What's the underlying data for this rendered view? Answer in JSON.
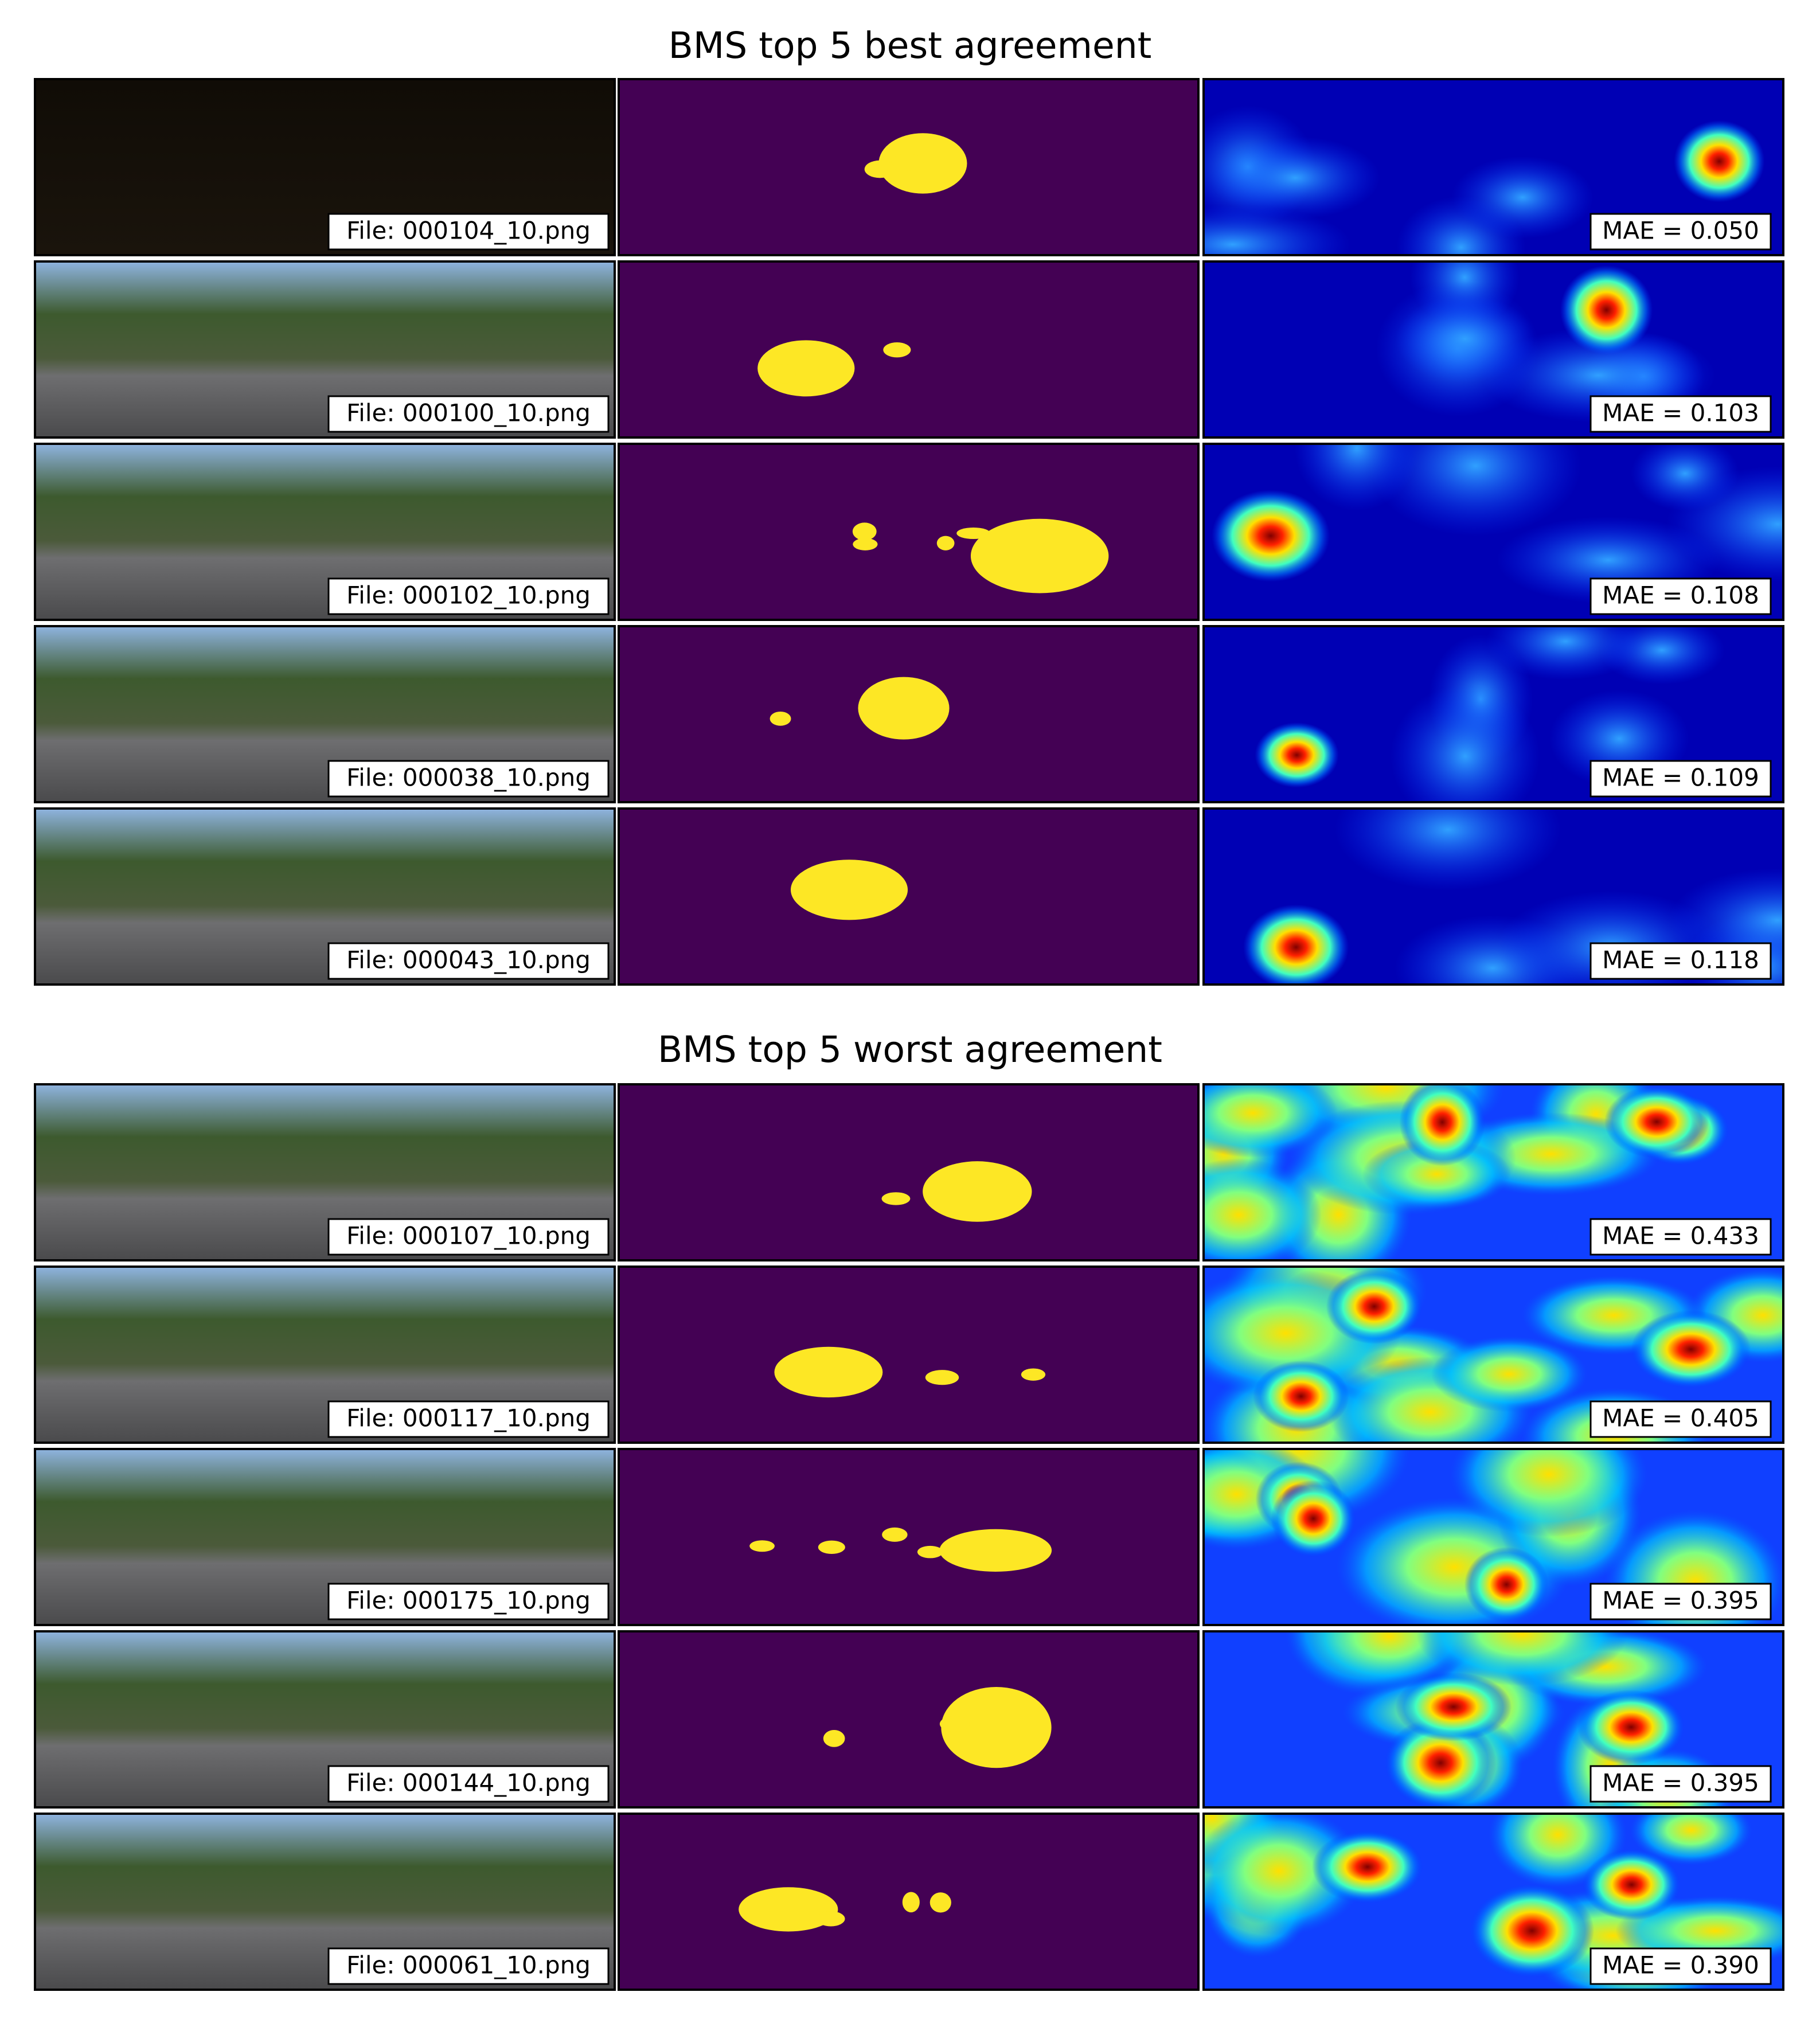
{
  "sections": [
    {
      "title": "BMS top 5 best agreement",
      "rows": [
        {
          "file": "File: 000104_10.png",
          "mae": "MAE = 0.050"
        },
        {
          "file": "File: 000100_10.png",
          "mae": "MAE = 0.103"
        },
        {
          "file": "File: 000102_10.png",
          "mae": "MAE = 0.108"
        },
        {
          "file": "File: 000038_10.png",
          "mae": "MAE = 0.109"
        },
        {
          "file": "File: 000043_10.png",
          "mae": "MAE = 0.118"
        }
      ]
    },
    {
      "title": "BMS top 5 worst agreement",
      "rows": [
        {
          "file": "File: 000107_10.png",
          "mae": "MAE = 0.433"
        },
        {
          "file": "File: 000117_10.png",
          "mae": "MAE = 0.405"
        },
        {
          "file": "File: 000175_10.png",
          "mae": "MAE = 0.395"
        },
        {
          "file": "File: 000144_10.png",
          "mae": "MAE = 0.395"
        },
        {
          "file": "File: 000061_10.png",
          "mae": "MAE = 0.390"
        }
      ]
    }
  ]
}
